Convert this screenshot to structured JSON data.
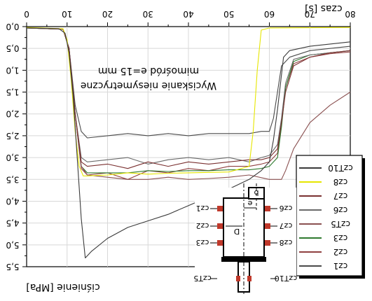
{
  "chart_data": {
    "type": "line",
    "xlabel": "czas [s]",
    "ylabel": "ciśnienie [MPa]",
    "xlim": [
      0,
      80
    ],
    "ylim": [
      0,
      5.5
    ],
    "y_inverted": true,
    "grid": true,
    "x_ticks": [
      "0",
      "10",
      "20",
      "30",
      "40",
      "50",
      "60",
      "70",
      "80"
    ],
    "y_ticks": [
      "0,0",
      "0,5",
      "1,0",
      "1,5",
      "2,0",
      "2,5",
      "3,0",
      "3,5",
      "4,0",
      "4,5",
      "5,0",
      "5,5"
    ],
    "annotation": [
      "Wyciskanie niesymetryczne",
      "mimośród e=15 mm"
    ],
    "legend": [
      "czT10",
      "cz8",
      "cz7",
      "cz6",
      "czT5",
      "cz3",
      "cz2",
      "cz1"
    ],
    "legend_position": "right",
    "series": [
      {
        "name": "czT10",
        "color": "#3a3a3a",
        "x": [
          0,
          8,
          9.5,
          10.5,
          11.5,
          12.5,
          13.5,
          14.5,
          16,
          20,
          25,
          30,
          35,
          40,
          45,
          50,
          55,
          58,
          60,
          61,
          62,
          63.5,
          65,
          70,
          75,
          80
        ],
        "y": [
          0.03,
          0.05,
          0.15,
          0.6,
          1.6,
          3.0,
          4.4,
          5.3,
          5.15,
          4.85,
          4.6,
          4.45,
          4.3,
          4.1,
          3.9,
          3.72,
          3.5,
          3.3,
          3.1,
          2.6,
          1.9,
          0.7,
          0.55,
          0.45,
          0.4,
          0.35
        ]
      },
      {
        "name": "cz8",
        "color": "#e6e600",
        "x": [
          0,
          9,
          10,
          11,
          12,
          13,
          14,
          15,
          20,
          25,
          30,
          35,
          40,
          45,
          50,
          55,
          56,
          57,
          58,
          60,
          80
        ],
        "y": [
          0.02,
          0.05,
          0.3,
          1.2,
          2.4,
          3.2,
          3.42,
          3.42,
          3.4,
          3.35,
          3.38,
          3.36,
          3.35,
          3.34,
          3.33,
          3.2,
          2.4,
          1.0,
          0.08,
          0.03,
          0.02
        ]
      },
      {
        "name": "cz7",
        "color": "#7a3030",
        "x": [
          0,
          9,
          10.5,
          12,
          13.5,
          15,
          20,
          25,
          30,
          35,
          40,
          45,
          50,
          55,
          58,
          60,
          62,
          63,
          64,
          66,
          70,
          75,
          80
        ],
        "y": [
          0.03,
          0.06,
          0.5,
          2.0,
          3.1,
          3.2,
          3.15,
          3.25,
          3.1,
          3.2,
          3.1,
          3.15,
          3.1,
          3.05,
          3.05,
          3.0,
          2.8,
          2.2,
          1.5,
          0.9,
          0.7,
          0.6,
          0.55
        ]
      },
      {
        "name": "cz6",
        "color": "#6a6a6a",
        "x": [
          0,
          9,
          10.5,
          12,
          13.5,
          15,
          20,
          25,
          30,
          35,
          40,
          45,
          50,
          55,
          58,
          60,
          62,
          63,
          64,
          66,
          70,
          75,
          80
        ],
        "y": [
          0.03,
          0.06,
          0.5,
          2.0,
          3.0,
          3.1,
          3.05,
          3.0,
          3.15,
          3.05,
          3.0,
          3.05,
          3.0,
          3.1,
          3.0,
          2.95,
          2.7,
          2.1,
          1.3,
          0.75,
          0.65,
          0.6,
          0.55
        ]
      },
      {
        "name": "czT5",
        "color": "#8a5050",
        "x": [
          0,
          9,
          10.5,
          12,
          13.5,
          15,
          20,
          25,
          30,
          35,
          40,
          45,
          50,
          55,
          60,
          63,
          64,
          66,
          70,
          75,
          80
        ],
        "y": [
          0.03,
          0.06,
          0.5,
          2.0,
          3.2,
          3.4,
          3.45,
          3.5,
          3.5,
          3.45,
          3.5,
          3.48,
          3.45,
          3.4,
          3.5,
          3.5,
          3.3,
          2.8,
          2.2,
          1.8,
          1.5
        ]
      },
      {
        "name": "cz3",
        "color": "#2e7a2e",
        "x": [
          0,
          9,
          10.5,
          12,
          13.5,
          15,
          20,
          25,
          30,
          35,
          40,
          45,
          50,
          55,
          58,
          60,
          62,
          63,
          64,
          66,
          70,
          75,
          80
        ],
        "y": [
          0.03,
          0.06,
          0.5,
          2.0,
          3.2,
          3.35,
          3.35,
          3.35,
          3.3,
          3.32,
          3.3,
          3.3,
          3.28,
          3.28,
          3.25,
          3.2,
          3.0,
          2.3,
          1.4,
          0.8,
          0.65,
          0.6,
          0.55
        ]
      },
      {
        "name": "cz2",
        "color": "#904040",
        "x": [
          0,
          9,
          10.5,
          12,
          13.5,
          15,
          20,
          25,
          30,
          35,
          40,
          45,
          50,
          55,
          58,
          60,
          62,
          63,
          64,
          66,
          70,
          75,
          80
        ],
        "y": [
          0.03,
          0.06,
          0.5,
          2.0,
          3.25,
          3.4,
          3.35,
          3.5,
          3.3,
          3.35,
          3.25,
          3.3,
          3.2,
          3.2,
          3.15,
          3.1,
          2.9,
          2.2,
          1.4,
          0.85,
          0.7,
          0.62,
          0.58
        ]
      },
      {
        "name": "cz1",
        "color": "#4a4a4a",
        "x": [
          0,
          9,
          10.5,
          12,
          13.5,
          15,
          20,
          25,
          30,
          35,
          40,
          45,
          50,
          55,
          58,
          60,
          61,
          62,
          63,
          65,
          70,
          75,
          80
        ],
        "y": [
          0.03,
          0.06,
          0.5,
          1.8,
          2.4,
          2.55,
          2.5,
          2.45,
          2.5,
          2.45,
          2.5,
          2.45,
          2.45,
          2.45,
          2.4,
          2.4,
          2.1,
          1.5,
          0.9,
          0.7,
          0.55,
          0.5,
          0.45
        ]
      }
    ],
    "inset": {
      "labels": {
        "e": "e",
        "b": "b",
        "D": "D"
      },
      "sensors_left": [
        "cz1",
        "cz2",
        "cz3",
        "czT5"
      ],
      "sensors_right": [
        "cz6",
        "cz7",
        "cz8",
        "czT10"
      ]
    }
  }
}
